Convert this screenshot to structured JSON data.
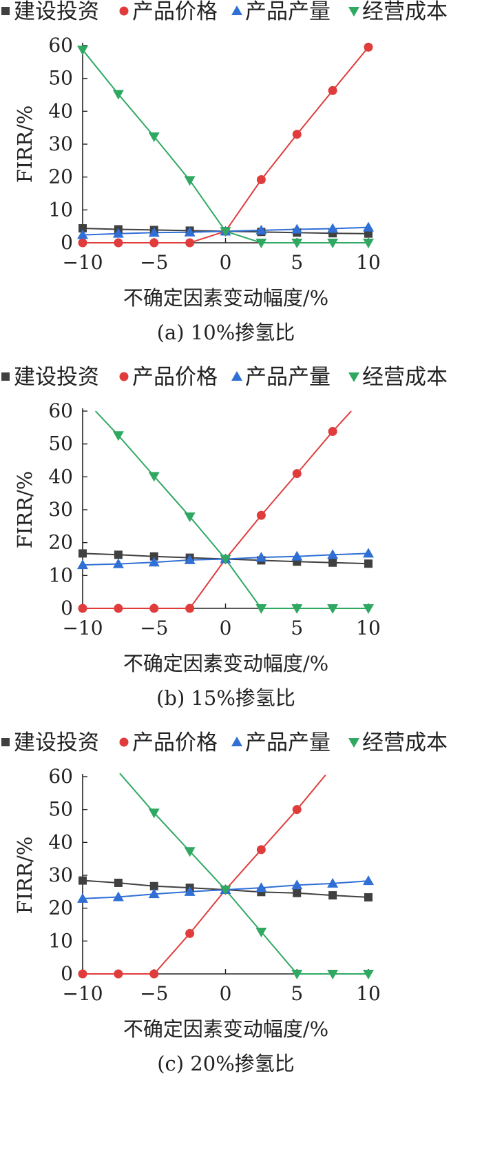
{
  "chart_data": [
    {
      "type": "line",
      "caption": "(a) 10%掺氢比",
      "xlabel": "不确定因素变动幅度/%",
      "ylabel": "FIRR/%",
      "xlim": [
        -10,
        10
      ],
      "ylim": [
        0,
        60
      ],
      "x_ticks": [
        "-10",
        "-5",
        "0",
        "5",
        "10"
      ],
      "y_ticks": [
        "0",
        "10",
        "20",
        "30",
        "40",
        "50",
        "60"
      ],
      "grid": false,
      "legend_position": "top",
      "x": [
        -10,
        -7.5,
        -5,
        -2.5,
        0,
        2.5,
        5,
        7.5,
        10
      ],
      "series": [
        {
          "name": "建设投资",
          "color": "#404040",
          "marker": "square",
          "points": [
            [
              -10,
              4.4
            ],
            [
              -7.5,
              4.1
            ],
            [
              -5,
              3.9
            ],
            [
              -2.5,
              3.7
            ],
            [
              0,
              3.5
            ],
            [
              2.5,
              3.3
            ],
            [
              5,
              3.1
            ],
            [
              7.5,
              2.9
            ],
            [
              10,
              2.8
            ]
          ]
        },
        {
          "name": "产品价格",
          "color": "#e03c3c",
          "marker": "circle",
          "points": [
            [
              -10,
              0
            ],
            [
              -7.5,
              0
            ],
            [
              -5,
              0
            ],
            [
              -2.5,
              0
            ],
            [
              0,
              3.5
            ],
            [
              2.5,
              19.2
            ],
            [
              5,
              33
            ],
            [
              7.5,
              46.3
            ],
            [
              10,
              59.5
            ]
          ]
        },
        {
          "name": "产品产量",
          "color": "#2f6fd6",
          "marker": "triangle-up",
          "points": [
            [
              -10,
              2.4
            ],
            [
              -7.5,
              2.8
            ],
            [
              -5,
              3.1
            ],
            [
              -2.5,
              3.2
            ],
            [
              0,
              3.5
            ],
            [
              2.5,
              3.8
            ],
            [
              5,
              4.1
            ],
            [
              7.5,
              4.3
            ],
            [
              10,
              4.7
            ]
          ]
        },
        {
          "name": "经营成本",
          "color": "#2fa862",
          "marker": "triangle-down",
          "points": [
            [
              -10,
              58.7
            ],
            [
              -7.5,
              45.2
            ],
            [
              -5,
              32.3
            ],
            [
              -2.5,
              19
            ],
            [
              0,
              3.5
            ],
            [
              2.5,
              0
            ],
            [
              5,
              0
            ],
            [
              7.5,
              0
            ],
            [
              10,
              0
            ]
          ]
        }
      ]
    },
    {
      "type": "line",
      "caption": "(b) 15%掺氢比",
      "xlabel": "不确定因素变动幅度/%",
      "ylabel": "FIRR/%",
      "xlim": [
        -10,
        10
      ],
      "ylim": [
        0,
        60
      ],
      "x_ticks": [
        "-10",
        "-5",
        "0",
        "5",
        "10"
      ],
      "y_ticks": [
        "0",
        "10",
        "20",
        "30",
        "40",
        "50",
        "60"
      ],
      "grid": false,
      "legend_position": "top",
      "x": [
        -10,
        -7.5,
        -5,
        -2.5,
        0,
        2.5,
        5,
        7.5,
        10
      ],
      "series": [
        {
          "name": "建设投资",
          "color": "#404040",
          "marker": "square",
          "points": [
            [
              -10,
              16.7
            ],
            [
              -7.5,
              16.3
            ],
            [
              -5,
              15.8
            ],
            [
              -2.5,
              15.4
            ],
            [
              0,
              15
            ],
            [
              2.5,
              14.6
            ],
            [
              5,
              14.2
            ],
            [
              7.5,
              13.9
            ],
            [
              10,
              13.6
            ]
          ]
        },
        {
          "name": "产品价格",
          "color": "#e03c3c",
          "marker": "circle",
          "points": [
            [
              -10,
              0
            ],
            [
              -7.5,
              0
            ],
            [
              -5,
              0
            ],
            [
              -2.5,
              0
            ],
            [
              0,
              15
            ],
            [
              2.5,
              28.3
            ],
            [
              5,
              41
            ],
            [
              7.5,
              53.8
            ]
          ],
          "line_end": [
            8.8,
            60
          ]
        },
        {
          "name": "产品产量",
          "color": "#2f6fd6",
          "marker": "triangle-up",
          "points": [
            [
              -10,
              13.2
            ],
            [
              -7.5,
              13.5
            ],
            [
              -5,
              14
            ],
            [
              -2.5,
              14.7
            ],
            [
              0,
              15
            ],
            [
              2.5,
              15.5
            ],
            [
              5,
              15.8
            ],
            [
              7.5,
              16.3
            ],
            [
              10,
              16.7
            ]
          ]
        },
        {
          "name": "经营成本",
          "color": "#2fa862",
          "marker": "triangle-down",
          "points": [
            [
              -7.5,
              52.6
            ],
            [
              -5,
              40.2
            ],
            [
              -2.5,
              27.9
            ],
            [
              0,
              15
            ],
            [
              2.5,
              0
            ],
            [
              5,
              0
            ],
            [
              7.5,
              0
            ],
            [
              10,
              0
            ]
          ],
          "line_start": [
            -9.1,
            60
          ]
        }
      ]
    },
    {
      "type": "line",
      "caption": "(c) 20%掺氢比",
      "xlabel": "不确定因素变动幅度/%",
      "ylabel": "FIRR/%",
      "xlim": [
        -10,
        10
      ],
      "ylim": [
        0,
        60
      ],
      "x_ticks": [
        "-10",
        "-5",
        "0",
        "5",
        "10"
      ],
      "y_ticks": [
        "0",
        "10",
        "20",
        "30",
        "40",
        "50",
        "60"
      ],
      "grid": false,
      "legend_position": "top",
      "x": [
        -10,
        -7.5,
        -5,
        -2.5,
        0,
        2.5,
        5,
        7.5,
        10
      ],
      "series": [
        {
          "name": "建设投资",
          "color": "#404040",
          "marker": "square",
          "points": [
            [
              -10,
              28.4
            ],
            [
              -7.5,
              27.7
            ],
            [
              -5,
              26.7
            ],
            [
              -2.5,
              26.2
            ],
            [
              0,
              25.6
            ],
            [
              2.5,
              24.9
            ],
            [
              5,
              24.6
            ],
            [
              7.5,
              23.9
            ],
            [
              10,
              23.3
            ]
          ]
        },
        {
          "name": "产品价格",
          "color": "#e03c3c",
          "marker": "circle",
          "points": [
            [
              -10,
              0
            ],
            [
              -7.5,
              0
            ],
            [
              -5,
              0
            ],
            [
              -2.5,
              12.3
            ],
            [
              0,
              25.6
            ],
            [
              2.5,
              37.8
            ],
            [
              5,
              50
            ]
          ],
          "line_end": [
            7,
            60.5
          ]
        },
        {
          "name": "产品产量",
          "color": "#2f6fd6",
          "marker": "triangle-up",
          "points": [
            [
              -10,
              22.9
            ],
            [
              -7.5,
              23.4
            ],
            [
              -5,
              24.3
            ],
            [
              -2.5,
              25
            ],
            [
              0,
              25.6
            ],
            [
              2.5,
              26.2
            ],
            [
              5,
              27
            ],
            [
              7.5,
              27.5
            ],
            [
              10,
              28.3
            ]
          ]
        },
        {
          "name": "经营成本",
          "color": "#2fa862",
          "marker": "triangle-down",
          "points": [
            [
              -5,
              49
            ],
            [
              -2.5,
              37.3
            ],
            [
              0,
              25.6
            ],
            [
              2.5,
              12.8
            ],
            [
              5,
              0
            ],
            [
              7.5,
              0
            ],
            [
              10,
              0
            ]
          ],
          "line_start": [
            -7.4,
            61
          ]
        }
      ]
    }
  ]
}
